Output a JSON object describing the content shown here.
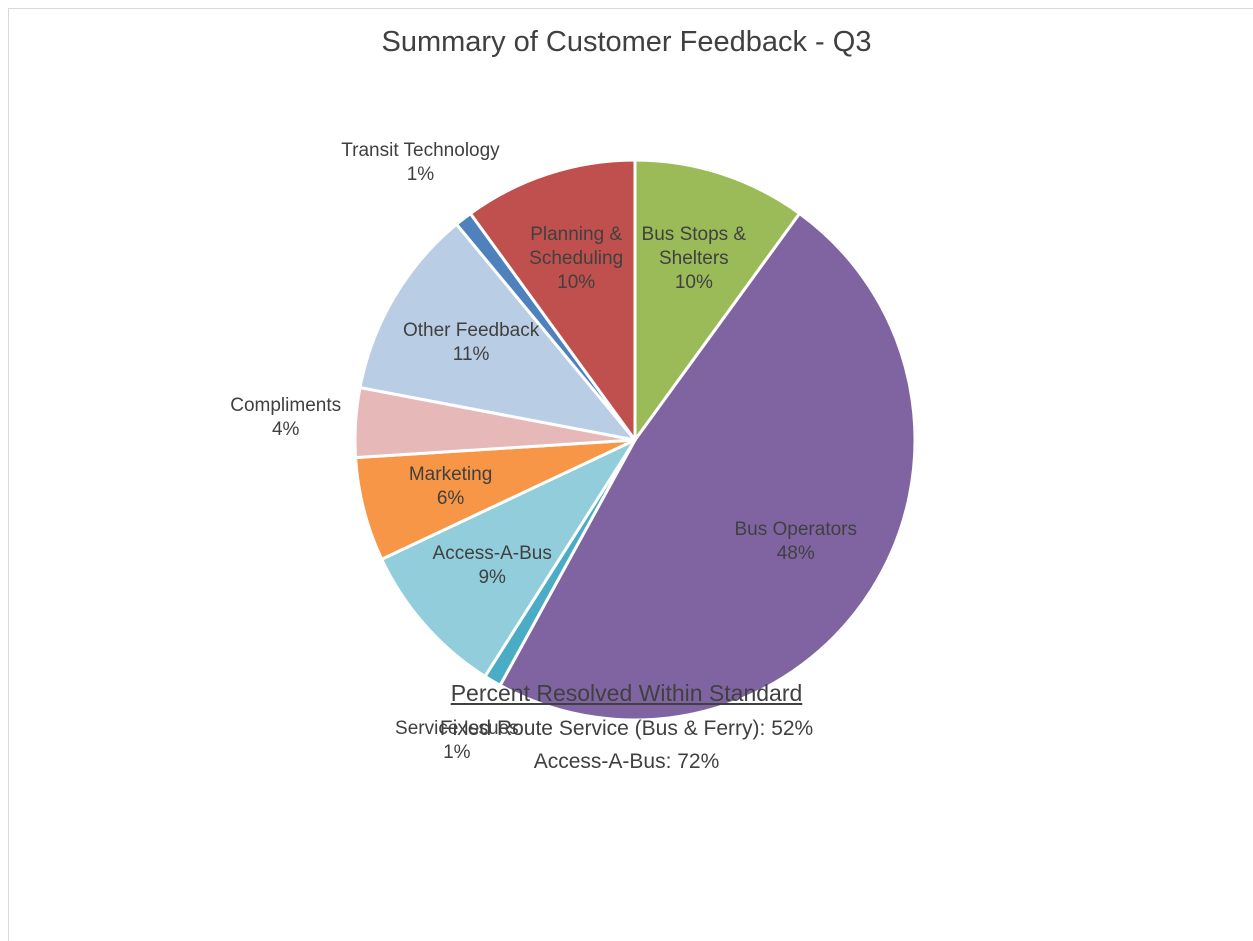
{
  "chart_data": {
    "type": "pie",
    "title": "Summary of Customer Feedback - Q3",
    "categories": [
      "Bus Stops & Shelters",
      "Bus Operators",
      "Service Issues",
      "Access-A-Bus",
      "Marketing",
      "Compliments",
      "Other Feedback",
      "Transit Technology",
      "Planning & Scheduling"
    ],
    "values": [
      10,
      48,
      1,
      9,
      6,
      4,
      11,
      1,
      10
    ],
    "value_labels": [
      "10%",
      "48%",
      "1%",
      "9%",
      "6%",
      "4%",
      "11%",
      "1%",
      "10%"
    ],
    "colors": [
      "#9bbb59",
      "#8064a2",
      "#4bacc6",
      "#92cddc",
      "#f79646",
      "#e6b9b8",
      "#b9cde5",
      "#4f81bd",
      "#c0504d"
    ],
    "annotations": [
      "Percent Resolved Within Standard",
      "Fixed Route Service (Bus & Ferry): 52%",
      "Access-A-Bus: 72%"
    ]
  }
}
